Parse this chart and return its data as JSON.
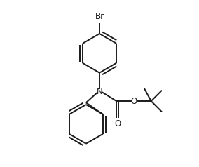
{
  "background_color": "#ffffff",
  "line_color": "#1a1a1a",
  "text_color": "#1a1a1a",
  "line_width": 1.4,
  "font_size": 8.5,
  "figsize": [
    2.84,
    2.38
  ],
  "dpi": 100,
  "xlim": [
    0.0,
    10.0
  ],
  "ylim": [
    0.0,
    8.5
  ]
}
